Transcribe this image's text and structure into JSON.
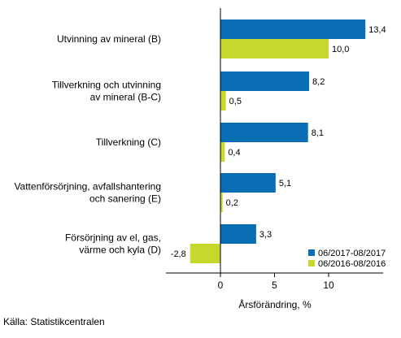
{
  "chart_data": {
    "type": "bar",
    "orientation": "horizontal",
    "categories": [
      "Utvinning av mineral (B)",
      "Tillverkning och utvinning\nav mineral (B-C)",
      "Tillverkning (C)",
      "Vattenförsörjning, avfallshantering\noch sanering (E)",
      "Försörjning av el, gas,\nvärme och kyla (D)"
    ],
    "series": [
      {
        "name": "06/2017-08/2017",
        "color": "#0a6eb4",
        "values": [
          13.4,
          8.2,
          8.1,
          5.1,
          3.3
        ],
        "labels": [
          "13,4",
          "8,2",
          "8,1",
          "5,1",
          "3,3"
        ]
      },
      {
        "name": "06/2016-08/2016",
        "color": "#c6d82c",
        "values": [
          10.0,
          0.5,
          0.4,
          0.2,
          -2.8
        ],
        "labels": [
          "10,0",
          "0,5",
          "0,4",
          "0,2",
          "-2,8"
        ]
      }
    ],
    "xlabel": "Årsförändring, %",
    "ylabel": "",
    "xlim": [
      -5,
      15
    ],
    "xticks": [
      0,
      5,
      10
    ],
    "xtick_labels": [
      "0",
      "5",
      "10"
    ],
    "legend_position": "bottom-right",
    "grid": false
  },
  "source": "Källa: Statistikcentralen"
}
